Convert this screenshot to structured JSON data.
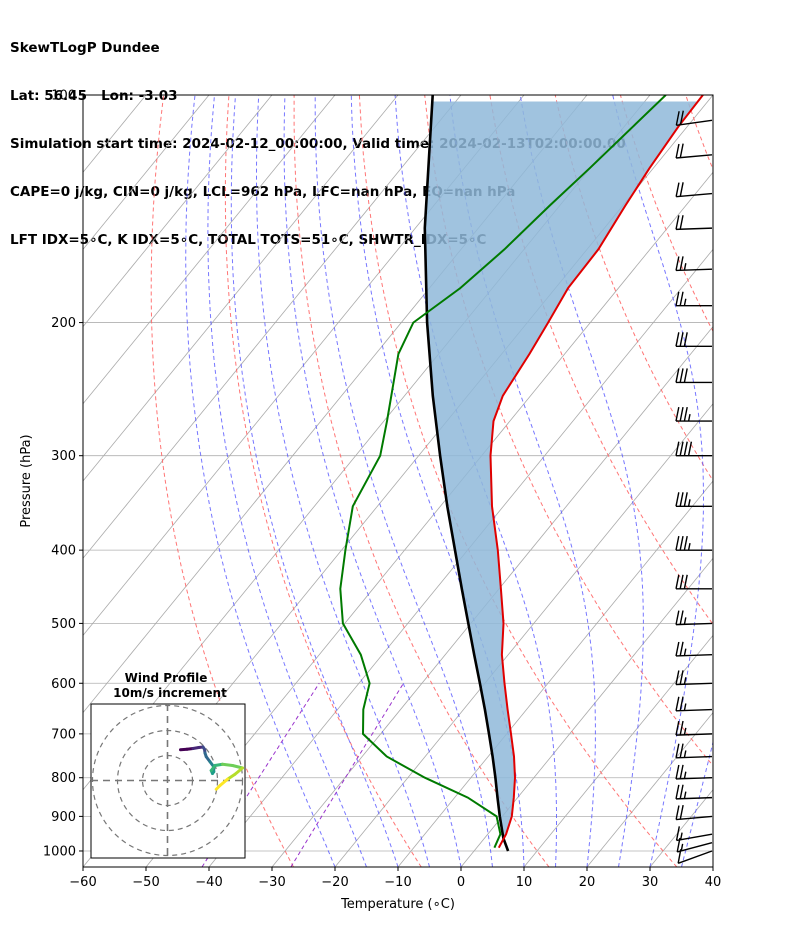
{
  "header": {
    "line1": "SkewTLogP Dundee",
    "line2": "Lat: 56.45   Lon: -3.03",
    "line3": "Simulation start time: 2024-02-12_00:00:00, Valid time: 2024-02-13T02:00:00.00",
    "line4": "CAPE=0 j/kg, CIN=0 j/kg, LCL=962 hPa, LFC=nan hPa, EQ=nan hPa",
    "line5": "LFT IDX=5∘C, K IDX=5∘C, TOTAL TOTS=51∘C, SHWTR_IDX=5∘C"
  },
  "chart_data": [
    {
      "type": "line",
      "subtype": "skew-t log-p",
      "xlabel": "Temperature (∘C)",
      "ylabel": "Pressure (hPa)",
      "xlim": [
        -60,
        40
      ],
      "ylim": [
        1050,
        100
      ],
      "y_scale": "log",
      "x_ticks": [
        -60,
        -50,
        -40,
        -30,
        -20,
        -10,
        0,
        10,
        20,
        30,
        40
      ],
      "x_tick_labels": [
        "−60",
        "−50",
        "−40",
        "−30",
        "−20",
        "−10",
        "0",
        "10",
        "20",
        "30",
        "40"
      ],
      "y_ticks": [
        1000,
        900,
        800,
        700,
        600,
        500,
        400,
        300,
        200,
        100
      ],
      "y_tick_labels": [
        "1000",
        "900",
        "800",
        "700",
        "600",
        "500",
        "400",
        "300",
        "200",
        "100"
      ],
      "grid": true,
      "series": [
        {
          "role": "temperature",
          "color": "#e00000",
          "points": [
            {
              "p": 990,
              "t": 3.5
            },
            {
              "p": 950,
              "t": 2.9
            },
            {
              "p": 900,
              "t": 1.5
            },
            {
              "p": 850,
              "t": -0.6
            },
            {
              "p": 800,
              "t": -3.0
            },
            {
              "p": 750,
              "t": -5.9
            },
            {
              "p": 700,
              "t": -9.3
            },
            {
              "p": 650,
              "t": -13.0
            },
            {
              "p": 600,
              "t": -16.9
            },
            {
              "p": 550,
              "t": -21.0
            },
            {
              "p": 500,
              "t": -24.8
            },
            {
              "p": 450,
              "t": -29.7
            },
            {
              "p": 400,
              "t": -35.2
            },
            {
              "p": 350,
              "t": -41.8
            },
            {
              "p": 300,
              "t": -48.6
            },
            {
              "p": 270,
              "t": -52.6
            },
            {
              "p": 250,
              "t": -54.4
            },
            {
              "p": 220,
              "t": -55.6
            },
            {
              "p": 200,
              "t": -56.7
            },
            {
              "p": 180,
              "t": -58.0
            },
            {
              "p": 160,
              "t": -58.2
            },
            {
              "p": 140,
              "t": -59.6
            },
            {
              "p": 125,
              "t": -60.6
            },
            {
              "p": 110,
              "t": -61.4
            },
            {
              "p": 100,
              "t": -61.6
            }
          ]
        },
        {
          "role": "dewpoint",
          "color": "#007a00",
          "points": [
            {
              "p": 990,
              "t": 2.8
            },
            {
              "p": 950,
              "t": 2.0
            },
            {
              "p": 900,
              "t": -0.9
            },
            {
              "p": 850,
              "t": -7.9
            },
            {
              "p": 800,
              "t": -17.3
            },
            {
              "p": 750,
              "t": -26.1
            },
            {
              "p": 700,
              "t": -32.8
            },
            {
              "p": 650,
              "t": -35.9
            },
            {
              "p": 600,
              "t": -38.3
            },
            {
              "p": 550,
              "t": -43.4
            },
            {
              "p": 500,
              "t": -50.3
            },
            {
              "p": 450,
              "t": -55.2
            },
            {
              "p": 400,
              "t": -59.4
            },
            {
              "p": 350,
              "t": -63.9
            },
            {
              "p": 300,
              "t": -66.1
            },
            {
              "p": 270,
              "t": -69.5
            },
            {
              "p": 250,
              "t": -72.1
            },
            {
              "p": 220,
              "t": -76.4
            },
            {
              "p": 200,
              "t": -78.1
            },
            {
              "p": 180,
              "t": -75.1
            },
            {
              "p": 160,
              "t": -73.1
            },
            {
              "p": 140,
              "t": -71.6
            },
            {
              "p": 125,
              "t": -70.1
            },
            {
              "p": 110,
              "t": -68.6
            },
            {
              "p": 100,
              "t": -67.5
            }
          ]
        },
        {
          "role": "parcel",
          "color": "#000000",
          "points": [
            {
              "p": 1000,
              "t": 5.4
            },
            {
              "p": 962,
              "t": 3.0
            },
            {
              "p": 900,
              "t": -0.4
            },
            {
              "p": 850,
              "t": -3.2
            },
            {
              "p": 800,
              "t": -6.1
            },
            {
              "p": 750,
              "t": -9.3
            },
            {
              "p": 700,
              "t": -12.8
            },
            {
              "p": 650,
              "t": -16.6
            },
            {
              "p": 600,
              "t": -20.8
            },
            {
              "p": 550,
              "t": -25.4
            },
            {
              "p": 500,
              "t": -30.4
            },
            {
              "p": 450,
              "t": -35.9
            },
            {
              "p": 400,
              "t": -42.0
            },
            {
              "p": 350,
              "t": -48.9
            },
            {
              "p": 300,
              "t": -56.6
            },
            {
              "p": 250,
              "t": -65.5
            },
            {
              "p": 200,
              "t": -75.9
            },
            {
              "p": 150,
              "t": -88.5
            },
            {
              "p": 100,
              "t": -104.5
            }
          ]
        }
      ],
      "shading": {
        "between": [
          "temperature",
          "parcel"
        ],
        "color": "#8fb9d9"
      },
      "background_lines": {
        "isotherms_color": "#aaaaaa",
        "dry_adiabats_color": "#ff6666",
        "moist_adiabats_color": "#5555ff",
        "mixing_ratio_color": "#9933cc"
      },
      "wind_barbs": {
        "color": "#000000",
        "levels": [
          {
            "p": 1000,
            "speed": 10,
            "dir": 250
          },
          {
            "p": 975,
            "speed": 15,
            "dir": 255
          },
          {
            "p": 950,
            "speed": 15,
            "dir": 260
          },
          {
            "p": 900,
            "speed": 20,
            "dir": 265
          },
          {
            "p": 850,
            "speed": 25,
            "dir": 268
          },
          {
            "p": 800,
            "speed": 25,
            "dir": 268
          },
          {
            "p": 750,
            "speed": 25,
            "dir": 268
          },
          {
            "p": 700,
            "speed": 25,
            "dir": 268
          },
          {
            "p": 650,
            "speed": 25,
            "dir": 268
          },
          {
            "p": 600,
            "speed": 25,
            "dir": 268
          },
          {
            "p": 550,
            "speed": 25,
            "dir": 268
          },
          {
            "p": 500,
            "speed": 25,
            "dir": 268
          },
          {
            "p": 450,
            "speed": 30,
            "dir": 270
          },
          {
            "p": 400,
            "speed": 35,
            "dir": 270
          },
          {
            "p": 350,
            "speed": 35,
            "dir": 270
          },
          {
            "p": 300,
            "speed": 40,
            "dir": 270
          },
          {
            "p": 270,
            "speed": 35,
            "dir": 270
          },
          {
            "p": 240,
            "speed": 30,
            "dir": 270
          },
          {
            "p": 215,
            "speed": 30,
            "dir": 270
          },
          {
            "p": 190,
            "speed": 25,
            "dir": 270
          },
          {
            "p": 170,
            "speed": 25,
            "dir": 268
          },
          {
            "p": 150,
            "speed": 20,
            "dir": 268
          },
          {
            "p": 135,
            "speed": 20,
            "dir": 265
          },
          {
            "p": 120,
            "speed": 20,
            "dir": 265
          },
          {
            "p": 108,
            "speed": 20,
            "dir": 262
          }
        ]
      }
    },
    {
      "type": "line",
      "subtype": "hodograph",
      "title": "Wind Profile",
      "subtitle": "10m/s increment",
      "colormap": "viridis",
      "rings": [
        1,
        2,
        3
      ],
      "points": [
        {
          "u": 0.52,
          "v": 1.23
        },
        {
          "u": 0.78,
          "v": 1.25
        },
        {
          "u": 1.02,
          "v": 1.28
        },
        {
          "u": 1.25,
          "v": 1.32
        },
        {
          "u": 1.42,
          "v": 1.34
        },
        {
          "u": 1.48,
          "v": 1.25
        },
        {
          "u": 1.5,
          "v": 1.1
        },
        {
          "u": 1.55,
          "v": 0.95
        },
        {
          "u": 1.7,
          "v": 0.75
        },
        {
          "u": 1.85,
          "v": 0.55
        },
        {
          "u": 1.85,
          "v": 0.35
        },
        {
          "u": 1.8,
          "v": 0.28
        },
        {
          "u": 1.75,
          "v": 0.4
        },
        {
          "u": 1.9,
          "v": 0.6
        },
        {
          "u": 2.2,
          "v": 0.65
        },
        {
          "u": 2.6,
          "v": 0.6
        },
        {
          "u": 3.0,
          "v": 0.5
        },
        {
          "u": 2.7,
          "v": 0.25
        },
        {
          "u": 2.4,
          "v": 0.05
        },
        {
          "u": 2.1,
          "v": -0.2
        },
        {
          "u": 1.95,
          "v": -0.35
        }
      ]
    }
  ]
}
